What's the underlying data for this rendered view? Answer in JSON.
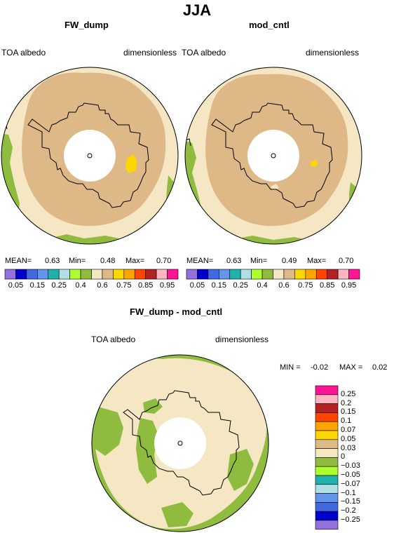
{
  "page": {
    "title": "JJA"
  },
  "panels": [
    {
      "id": "fw_dump",
      "title": "FW_dump",
      "left_label": "TOA albedo",
      "right_label": "dimensionless",
      "stats": {
        "mean_label": "MEAN=",
        "mean": "0.63",
        "min_label": "Min=",
        "min": "0.48",
        "max_label": "Max=",
        "max": "0.70"
      }
    },
    {
      "id": "mod_cntl",
      "title": "mod_cntl",
      "left_label": "TOA albedo",
      "right_label": "dimensionless",
      "stats": {
        "mean_label": "MEAN=",
        "mean": "0.63",
        "min_label": "Min=",
        "min": "0.49",
        "max_label": "Max=",
        "max": "0.70"
      }
    },
    {
      "id": "diff",
      "title": "FW_dump - mod_cntl",
      "left_label": "TOA albedo",
      "right_label": "dimensionless",
      "stats": {
        "min_label": "MIN =",
        "min": "-0.02",
        "max_label": "MAX =",
        "max": "0.02"
      }
    }
  ],
  "colorbar_top": {
    "colors": [
      "#9370db",
      "#0000cd",
      "#4169e1",
      "#6495ed",
      "#20b2aa",
      "#b0e0e6",
      "#adff2f",
      "#8fbc3f",
      "#f5e6c4",
      "#deb887",
      "#ffd700",
      "#ffa500",
      "#ff4500",
      "#b22222",
      "#ffb6c1",
      "#ff1493"
    ],
    "labels": [
      "0.05",
      "0.15",
      "0.25",
      "0.4",
      "0.6",
      "0.75",
      "0.85",
      "0.95"
    ]
  },
  "colorbar_diff": {
    "colors_top_to_bottom": [
      "#ff1493",
      "#ffb6c1",
      "#b22222",
      "#ff4500",
      "#ffa500",
      "#ffd700",
      "#deb887",
      "#f5e6c4",
      "#8fbc3f",
      "#adff2f",
      "#20b2aa",
      "#b0e0e6",
      "#6495ed",
      "#4169e1",
      "#0000cd",
      "#9370db"
    ],
    "labels": [
      "0.25",
      "0.2",
      "0.15",
      "0.1",
      "0.07",
      "0.05",
      "0.03",
      "0",
      "−0.03",
      "−0.05",
      "−0.07",
      "−0.1",
      "−0.15",
      "−0.2",
      "−0.25"
    ]
  },
  "map_colors": {
    "land_green": "#8fbc3f",
    "light_tan": "#f5e6c4",
    "tan": "#deb887",
    "yellow": "#ffd700"
  }
}
